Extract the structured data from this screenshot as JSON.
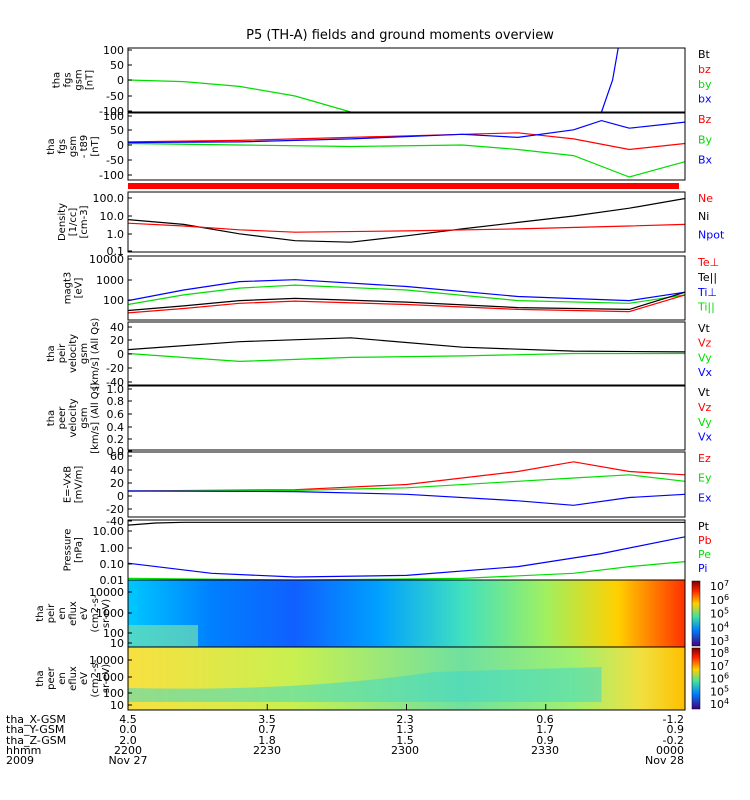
{
  "title": "P5 (TH-A) fields and ground moments overview",
  "chart_data": [
    {
      "type": "line",
      "ylabel": [
        "tha",
        "fgs",
        "gsm",
        "[nT]"
      ],
      "yticks": [
        "100",
        "50",
        "0",
        "-50",
        "-100"
      ],
      "ylim": [
        -100,
        100
      ],
      "legend": [
        {
          "name": "Bt",
          "color": "#000000"
        },
        {
          "name": "bz",
          "color": "#ff0000"
        },
        {
          "name": "by",
          "color": "#00dd00"
        },
        {
          "name": "bx",
          "color": "#0000ff"
        }
      ],
      "series": [
        {
          "name": "by",
          "x": [
            0,
            0.1,
            0.2,
            0.3,
            0.35,
            0.4
          ],
          "y": [
            0,
            -5,
            -20,
            -50,
            -75,
            -100
          ]
        },
        {
          "name": "bx",
          "x": [
            0.85,
            0.87,
            0.88
          ],
          "y": [
            -100,
            0,
            100
          ]
        }
      ]
    },
    {
      "type": "line",
      "ylabel": [
        "tha",
        "fgs",
        "gsm",
        "- t89",
        "[nT]"
      ],
      "yticks": [
        "100",
        "50",
        "0",
        "-50",
        "-100"
      ],
      "ylim": [
        -120,
        100
      ],
      "legend": [
        {
          "name": "Bz",
          "color": "#ff0000"
        },
        {
          "name": "By",
          "color": "#00dd00"
        },
        {
          "name": "Bx",
          "color": "#0000ff"
        }
      ],
      "series": [
        {
          "name": "Bz",
          "x": [
            0,
            0.2,
            0.4,
            0.6,
            0.7,
            0.8,
            0.9,
            1
          ],
          "y": [
            5,
            10,
            20,
            30,
            35,
            15,
            -20,
            0
          ]
        },
        {
          "name": "By",
          "x": [
            0,
            0.2,
            0.4,
            0.6,
            0.7,
            0.8,
            0.9,
            1
          ],
          "y": [
            0,
            -5,
            -10,
            -5,
            -20,
            -40,
            -110,
            -60
          ]
        },
        {
          "name": "Bx",
          "x": [
            0,
            0.2,
            0.4,
            0.6,
            0.7,
            0.8,
            0.85,
            0.9,
            1
          ],
          "y": [
            3,
            5,
            15,
            30,
            20,
            45,
            75,
            50,
            70
          ]
        }
      ]
    },
    {
      "type": "line",
      "ylabel": [
        "Density",
        "[1/cc]",
        "[cm-3]"
      ],
      "yticks": [
        "100.0",
        "10.0",
        "1.0",
        "0.1"
      ],
      "ylog": true,
      "ylim": [
        0.03,
        150
      ],
      "legend": [
        {
          "name": "Ne",
          "color": "#ff0000"
        },
        {
          "name": "Ni",
          "color": "#000000"
        },
        {
          "name": "Npot",
          "color": "#0000ff"
        }
      ],
      "series": [
        {
          "name": "Ni",
          "x": [
            0,
            0.1,
            0.2,
            0.3,
            0.4,
            0.5,
            0.6,
            0.7,
            0.8,
            0.9,
            1
          ],
          "y": [
            3,
            1.5,
            0.4,
            0.15,
            0.12,
            0.3,
            0.8,
            2,
            5,
            15,
            60
          ]
        },
        {
          "name": "Ne",
          "x": [
            0,
            0.1,
            0.2,
            0.3,
            0.5,
            0.7,
            0.9,
            1
          ],
          "y": [
            1.8,
            1.2,
            0.7,
            0.5,
            0.6,
            0.8,
            1.2,
            1.5
          ]
        }
      ]
    },
    {
      "type": "line",
      "ylabel": [
        "magt3",
        "[eV]"
      ],
      "yticks": [
        "10000",
        "1000",
        "100"
      ],
      "ylog": true,
      "ylim": [
        50,
        10000
      ],
      "legend": [
        {
          "name": "Te⊥",
          "color": "#ff0000"
        },
        {
          "name": "Te||",
          "color": "#000000"
        },
        {
          "name": "Ti⊥",
          "color": "#0000ff"
        },
        {
          "name": "Ti||",
          "color": "#00dd00"
        }
      ],
      "series": [
        {
          "name": "Ti⊥",
          "x": [
            0,
            0.1,
            0.2,
            0.3,
            0.5,
            0.7,
            0.9,
            1
          ],
          "y": [
            250,
            600,
            1200,
            1400,
            800,
            350,
            250,
            500
          ]
        },
        {
          "name": "Ti||",
          "x": [
            0,
            0.1,
            0.2,
            0.3,
            0.5,
            0.7,
            0.9,
            1
          ],
          "y": [
            180,
            400,
            700,
            900,
            600,
            250,
            200,
            400
          ]
        },
        {
          "name": "Te||",
          "x": [
            0,
            0.1,
            0.2,
            0.3,
            0.5,
            0.7,
            0.9,
            1
          ],
          "y": [
            110,
            160,
            250,
            300,
            220,
            140,
            120,
            500
          ]
        },
        {
          "name": "Te⊥",
          "x": [
            0,
            0.1,
            0.2,
            0.3,
            0.5,
            0.7,
            0.9,
            1
          ],
          "y": [
            90,
            130,
            200,
            240,
            180,
            120,
            100,
            400
          ]
        }
      ]
    },
    {
      "type": "line",
      "ylabel": [
        "tha",
        "peir",
        "velocity",
        "gsm",
        "[km/s] (All Qs)"
      ],
      "yticks": [
        "40",
        "20",
        "0",
        "-20",
        "-40"
      ],
      "ylim": [
        -40,
        40
      ],
      "legend": [
        {
          "name": "Vt",
          "color": "#000000"
        },
        {
          "name": "Vz",
          "color": "#ff0000"
        },
        {
          "name": "Vy",
          "color": "#00dd00"
        },
        {
          "name": "Vx",
          "color": "#0000ff"
        }
      ],
      "series": [
        {
          "name": "Vt",
          "x": [
            0,
            0.2,
            0.4,
            0.6,
            0.8,
            1
          ],
          "y": [
            5,
            15,
            20,
            8,
            3,
            2
          ]
        },
        {
          "name": "Vy",
          "x": [
            0,
            0.2,
            0.4,
            0.6,
            0.8,
            1
          ],
          "y": [
            0,
            -10,
            -5,
            -3,
            0,
            0
          ]
        }
      ]
    },
    {
      "type": "line",
      "ylabel": [
        "tha",
        "peer",
        "velocity",
        "gsm",
        "[km/s] (All Qs)"
      ],
      "yticks": [
        "1.0",
        "0.8",
        "0.6",
        "0.4",
        "0.2",
        "0.0"
      ],
      "ylim": [
        0,
        1
      ],
      "legend": [
        {
          "name": "Vt",
          "color": "#000000"
        },
        {
          "name": "Vz",
          "color": "#ff0000"
        },
        {
          "name": "Vy",
          "color": "#00dd00"
        },
        {
          "name": "Vx",
          "color": "#0000ff"
        }
      ],
      "series": []
    },
    {
      "type": "line",
      "ylabel": [
        "E=-VxB",
        "[mV/m]"
      ],
      "yticks": [
        "60",
        "40",
        "20",
        "0",
        "-20",
        "-40"
      ],
      "ylim": [
        -40,
        60
      ],
      "legend": [
        {
          "name": "Ez",
          "color": "#ff0000"
        },
        {
          "name": "Ey",
          "color": "#00dd00"
        },
        {
          "name": "Ex",
          "color": "#0000ff"
        }
      ],
      "series": [
        {
          "name": "Ez",
          "x": [
            0,
            0.3,
            0.5,
            0.7,
            0.8,
            0.9,
            1
          ],
          "y": [
            0,
            2,
            10,
            30,
            45,
            30,
            25
          ]
        },
        {
          "name": "Ey",
          "x": [
            0,
            0.3,
            0.5,
            0.7,
            0.8,
            0.9,
            1
          ],
          "y": [
            0,
            1,
            5,
            15,
            20,
            25,
            15
          ]
        },
        {
          "name": "Ex",
          "x": [
            0,
            0.3,
            0.5,
            0.7,
            0.8,
            0.9,
            1
          ],
          "y": [
            0,
            -1,
            -5,
            -15,
            -22,
            -10,
            -5
          ]
        }
      ]
    },
    {
      "type": "line",
      "ylabel": [
        "Pressure",
        "[nPa]"
      ],
      "yticks": [
        "10.00",
        "1.00",
        "0.10",
        "0.01"
      ],
      "ylog": true,
      "ylim": [
        0.008,
        30
      ],
      "legend": [
        {
          "name": "Pt",
          "color": "#000000"
        },
        {
          "name": "Pb",
          "color": "#ff0000"
        },
        {
          "name": "Pe",
          "color": "#00dd00"
        },
        {
          "name": "Pi",
          "color": "#0000ff"
        }
      ],
      "series": [
        {
          "name": "Pt",
          "x": [
            0,
            0.05,
            0.1,
            0.15,
            1
          ],
          "y": [
            15,
            20,
            22,
            22,
            22
          ]
        },
        {
          "name": "Pi",
          "x": [
            0,
            0.15,
            0.3,
            0.5,
            0.7,
            0.85,
            1
          ],
          "y": [
            0.08,
            0.02,
            0.012,
            0.015,
            0.05,
            0.3,
            3
          ]
        },
        {
          "name": "Pe",
          "x": [
            0,
            0.3,
            0.6,
            0.8,
            0.9,
            1
          ],
          "y": [
            0.01,
            0.006,
            0.01,
            0.02,
            0.05,
            0.1
          ]
        }
      ]
    },
    {
      "type": "heatmap",
      "ylabel": [
        "tha",
        "peir",
        "en",
        "eflux",
        "eV",
        "(cm2-s-",
        "sr-eV)"
      ],
      "yticks": [
        "10000",
        "1000",
        "100",
        "10"
      ],
      "ylog": true,
      "colorbar": [
        "10^7",
        "10^6",
        "10^5",
        "10^4",
        "10^3"
      ]
    },
    {
      "type": "heatmap",
      "ylabel": [
        "tha",
        "peer",
        "en",
        "eflux",
        "eV",
        "(cm2-s-",
        "sr-eV)"
      ],
      "yticks": [
        "10000",
        "1000",
        "100",
        "10"
      ],
      "ylog": true,
      "colorbar": [
        "10^8",
        "10^7",
        "10^6",
        "10^5",
        "10^4"
      ]
    }
  ],
  "footer": {
    "rows": [
      {
        "label": "tha_X-GSM",
        "values": [
          "4.5",
          "3.5",
          "2.3",
          "0.6",
          "-1.2"
        ]
      },
      {
        "label": "tha_Y-GSM",
        "values": [
          "0.0",
          "0.7",
          "1.3",
          "1.7",
          "0.9"
        ]
      },
      {
        "label": "tha_Z-GSM",
        "values": [
          "2.0",
          "1.8",
          "1.5",
          "0.9",
          "-0.2"
        ]
      },
      {
        "label": "hhmm",
        "values": [
          "2200",
          "2230",
          "2300",
          "2330",
          "0000"
        ]
      },
      {
        "label": "2009",
        "values": [
          "Nov 27",
          "",
          "",
          "",
          "Nov 28"
        ]
      }
    ]
  }
}
